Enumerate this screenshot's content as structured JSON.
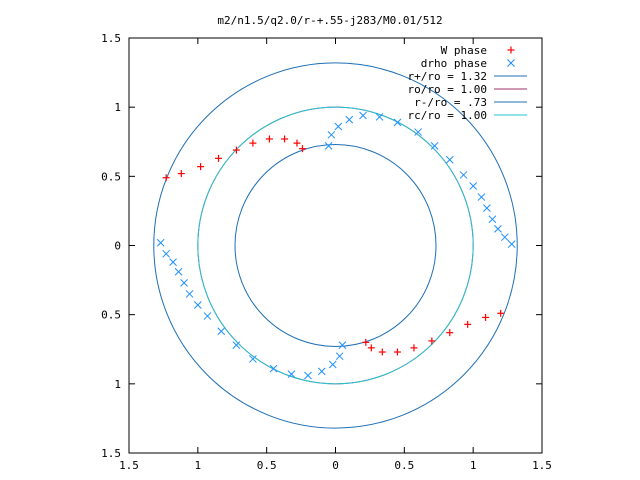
{
  "chart_data": {
    "type": "scatter",
    "title": "m2/n1.5/q2.0/r-+.55-j283/M0.01/512",
    "xlabel": "",
    "ylabel": "",
    "xlim": [
      -1.5,
      1.5
    ],
    "ylim": [
      -1.5,
      1.5
    ],
    "x_ticks": [
      -1.5,
      -1,
      -0.5,
      0,
      0.5,
      1,
      1.5
    ],
    "y_ticks": [
      -1.5,
      -1,
      -0.5,
      0,
      0.5,
      1,
      1.5
    ],
    "x_tick_labels": [
      "1.5",
      "1",
      "0.5",
      "0",
      "0.5",
      "1",
      "1.5"
    ],
    "y_tick_labels": [
      "1.5",
      "1",
      "0.5",
      "0",
      "0.5",
      "1",
      "1.5"
    ],
    "grid": false,
    "legend_position": "top-right",
    "series": [
      {
        "name": "W phase",
        "marker": "+",
        "color": "#ff0000",
        "points": [
          [
            -1.23,
            0.49
          ],
          [
            -1.12,
            0.52
          ],
          [
            -0.98,
            0.57
          ],
          [
            -0.85,
            0.63
          ],
          [
            -0.72,
            0.69
          ],
          [
            -0.6,
            0.74
          ],
          [
            -0.48,
            0.77
          ],
          [
            -0.37,
            0.77
          ],
          [
            -0.28,
            0.74
          ],
          [
            -0.24,
            0.7
          ],
          [
            1.2,
            -0.49
          ],
          [
            1.09,
            -0.52
          ],
          [
            0.96,
            -0.57
          ],
          [
            0.83,
            -0.63
          ],
          [
            0.7,
            -0.69
          ],
          [
            0.57,
            -0.74
          ],
          [
            0.45,
            -0.77
          ],
          [
            0.34,
            -0.77
          ],
          [
            0.26,
            -0.74
          ],
          [
            0.22,
            -0.7
          ]
        ]
      },
      {
        "name": "drho phase",
        "marker": "x",
        "color": "#1e90ff",
        "points": [
          [
            -0.05,
            0.72
          ],
          [
            -0.03,
            0.8
          ],
          [
            0.02,
            0.86
          ],
          [
            0.1,
            0.91
          ],
          [
            0.2,
            0.94
          ],
          [
            0.32,
            0.93
          ],
          [
            0.45,
            0.89
          ],
          [
            0.6,
            0.82
          ],
          [
            0.72,
            0.72
          ],
          [
            0.83,
            0.62
          ],
          [
            0.93,
            0.51
          ],
          [
            1.0,
            0.43
          ],
          [
            1.06,
            0.35
          ],
          [
            1.1,
            0.27
          ],
          [
            1.14,
            0.19
          ],
          [
            1.18,
            0.12
          ],
          [
            1.23,
            0.06
          ],
          [
            1.28,
            0.01
          ],
          [
            0.05,
            -0.72
          ],
          [
            0.03,
            -0.8
          ],
          [
            -0.02,
            -0.86
          ],
          [
            -0.1,
            -0.91
          ],
          [
            -0.2,
            -0.94
          ],
          [
            -0.32,
            -0.93
          ],
          [
            -0.45,
            -0.89
          ],
          [
            -0.6,
            -0.82
          ],
          [
            -0.72,
            -0.72
          ],
          [
            -0.83,
            -0.62
          ],
          [
            -0.93,
            -0.51
          ],
          [
            -1.0,
            -0.43
          ],
          [
            -1.06,
            -0.35
          ],
          [
            -1.1,
            -0.27
          ],
          [
            -1.14,
            -0.19
          ],
          [
            -1.18,
            -0.12
          ],
          [
            -1.23,
            -0.06
          ],
          [
            -1.27,
            0.02
          ]
        ]
      }
    ],
    "circles": [
      {
        "name": "r+/ro = 1.32",
        "radius": 1.32,
        "color": "#1e6fb5"
      },
      {
        "name": "ro/ro = 1.00",
        "radius": 1.0,
        "color": "#a0306e"
      },
      {
        "name": "r-/ro = .73",
        "radius": 0.73,
        "color": "#1e6fb5"
      },
      {
        "name": "rc/ro = 1.00",
        "radius": 1.0,
        "color": "#22c6d0"
      }
    ]
  }
}
